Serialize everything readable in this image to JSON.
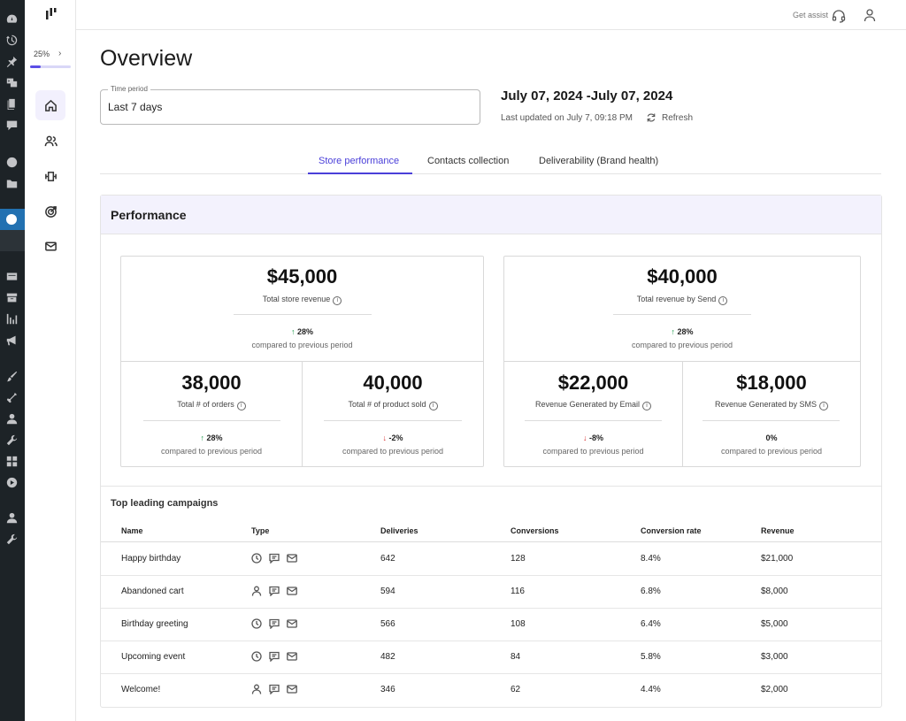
{
  "wp_sidebar": {
    "icons": [
      "dashboard-icon",
      "history-icon",
      "pin-icon",
      "media-icon",
      "pages-icon",
      "comments-icon",
      "plugin-icon",
      "folder-icon",
      "circle-icon",
      "card-icon",
      "box-icon",
      "bars-icon",
      "megaphone-icon",
      "brush-icon",
      "tools-icon",
      "user-icon",
      "wrench-icon",
      "grid-icon",
      "play-icon",
      "user-icon",
      "wrench-icon"
    ]
  },
  "progress": {
    "label": "25%",
    "value": 0.25
  },
  "topbar": {
    "assist_label": "Get assist"
  },
  "page": {
    "title": "Overview"
  },
  "time_period": {
    "legend": "Time period",
    "value": "Last 7 days"
  },
  "date_range": "July 07, 2024 -July 07, 2024",
  "last_updated": "Last updated on July 7, 09:18 PM",
  "refresh_label": "Refresh",
  "tabs": [
    {
      "label": "Store performance"
    },
    {
      "label": "Contacts collection"
    },
    {
      "label": "Deliverability (Brand health)"
    }
  ],
  "performance": {
    "title": "Performance",
    "store": {
      "total": {
        "value": "$45,000",
        "label": "Total store revenue",
        "delta": "28%",
        "direction": "up",
        "compare": "compared to previous period"
      },
      "orders": {
        "value": "38,000",
        "label": "Total # of orders",
        "delta": "28%",
        "direction": "up",
        "compare": "compared to previous period"
      },
      "products": {
        "value": "40,000",
        "label": "Total # of product sold",
        "delta": "-2%",
        "direction": "down",
        "compare": "compared to previous period"
      }
    },
    "send": {
      "total": {
        "value": "$40,000",
        "label": "Total revenue by Send",
        "delta": "28%",
        "direction": "up",
        "compare": "compared to previous period"
      },
      "email": {
        "value": "$22,000",
        "label": "Revenue Generated by Email",
        "delta": "-8%",
        "direction": "down",
        "compare": "compared to previous period"
      },
      "sms": {
        "value": "$18,000",
        "label": "Revenue Generated by SMS",
        "delta": "0%",
        "direction": "none",
        "compare": "compared to previous period"
      }
    }
  },
  "campaigns": {
    "title": "Top leading campaigns",
    "columns": [
      "Name",
      "Type",
      "Deliveries",
      "Conversions",
      "Conversion rate",
      "Revenue"
    ],
    "rows": [
      {
        "name": "Happy birthday",
        "type": [
          "clock-icon",
          "message-icon",
          "mail-icon"
        ],
        "deliveries": "642",
        "conversions": "128",
        "rate": "8.4%",
        "revenue": "$21,000"
      },
      {
        "name": "Abandoned cart",
        "type": [
          "person-icon",
          "message-icon",
          "mail-icon"
        ],
        "deliveries": "594",
        "conversions": "116",
        "rate": "6.8%",
        "revenue": "$8,000"
      },
      {
        "name": "Birthday greeting",
        "type": [
          "clock-icon",
          "message-icon",
          "mail-icon"
        ],
        "deliveries": "566",
        "conversions": "108",
        "rate": "6.4%",
        "revenue": "$5,000"
      },
      {
        "name": "Upcoming event",
        "type": [
          "clock-icon",
          "message-icon",
          "mail-icon"
        ],
        "deliveries": "482",
        "conversions": "84",
        "rate": "5.8%",
        "revenue": "$3,000"
      },
      {
        "name": "Welcome!",
        "type": [
          "person-icon",
          "message-icon",
          "mail-icon"
        ],
        "deliveries": "346",
        "conversions": "62",
        "rate": "4.4%",
        "revenue": "$2,000"
      }
    ]
  },
  "colors": {
    "accent": "#4a3fd9",
    "up": "#1a9a4a",
    "down": "#d93636",
    "header_bg": "#f3f2fd",
    "wp_bar": "#1d2327",
    "wp_active": "#2271b1"
  }
}
